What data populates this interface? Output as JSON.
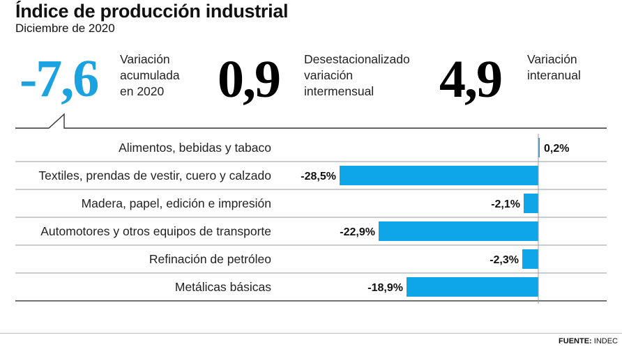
{
  "header": {
    "title": "Índice de producción industrial",
    "subtitle": "Diciembre de 2020"
  },
  "stats": [
    {
      "value": "-7,6",
      "label_lines": [
        "Variación",
        "acumulada",
        "en 2020"
      ],
      "color": "#1aa3e0"
    },
    {
      "value": "0,9",
      "label_lines": [
        "Desestacionalizado",
        "variación",
        "intermensual"
      ],
      "color": "#000000"
    },
    {
      "value": "4,9",
      "label_lines": [
        "Variación",
        "interanual"
      ],
      "color": "#000000"
    }
  ],
  "chart_data": {
    "type": "bar",
    "orientation": "horizontal",
    "categories": [
      "Alimentos, bebidas y tabaco",
      "Textiles, prendas de vestir, cuero y calzado",
      "Madera, papel, edición e impresión",
      "Automotores y otros equipos de transporte",
      "Refinación de petróleo",
      "Metálicas básicas"
    ],
    "values": [
      0.2,
      -28.5,
      -2.1,
      -22.9,
      -2.3,
      -18.9
    ],
    "value_labels": [
      "0,2",
      "-28,5",
      "-2,1",
      "-22,9",
      "-2,3",
      "-18,9"
    ],
    "unit": "%",
    "xlim": [
      -30,
      10
    ],
    "bar_color": "#0ea5e9",
    "title": "",
    "xlabel": "",
    "ylabel": ""
  },
  "footer": {
    "source_label": "FUENTE:",
    "source_value": "INDEC"
  }
}
